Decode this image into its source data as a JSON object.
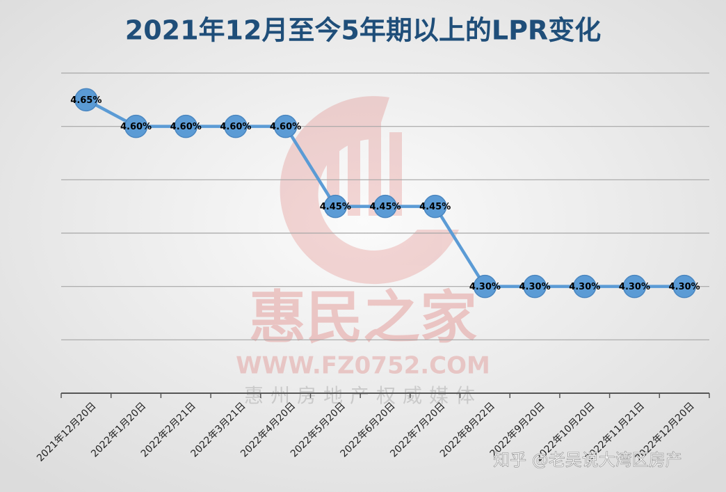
{
  "chart_data": {
    "type": "line",
    "title": "2021年12月至今5年期以上的LPR变化",
    "categories": [
      "2021年12月20日",
      "2022年1月20日",
      "2022年2月21日",
      "2022年3月21日",
      "2022年4月20日",
      "2022年5月20日",
      "2022年6月20日",
      "2022年7月20日",
      "2022年8月22日",
      "2022年9月20日",
      "2022年10月20日",
      "2022年11月21日",
      "2022年12月20日"
    ],
    "values": [
      4.65,
      4.6,
      4.6,
      4.6,
      4.6,
      4.45,
      4.45,
      4.45,
      4.3,
      4.3,
      4.3,
      4.3,
      4.3
    ],
    "value_labels": [
      "4.65%",
      "4.60%",
      "4.60%",
      "4.60%",
      "4.60%",
      "4.45%",
      "4.45%",
      "4.45%",
      "4.30%",
      "4.30%",
      "4.30%",
      "4.30%",
      "4.30%"
    ],
    "color": "#5b9bd5",
    "ylim": [
      4.1,
      4.7
    ],
    "yticks": [
      4.1,
      4.2,
      4.3,
      4.4,
      4.5,
      4.6,
      4.7
    ],
    "grid": true
  },
  "watermark": {
    "brand": "惠民之家",
    "url": "WWW.FZ0752.COM",
    "slogan": "惠州房地产权威媒体",
    "source": "知乎 @老吴说大湾区房产"
  }
}
